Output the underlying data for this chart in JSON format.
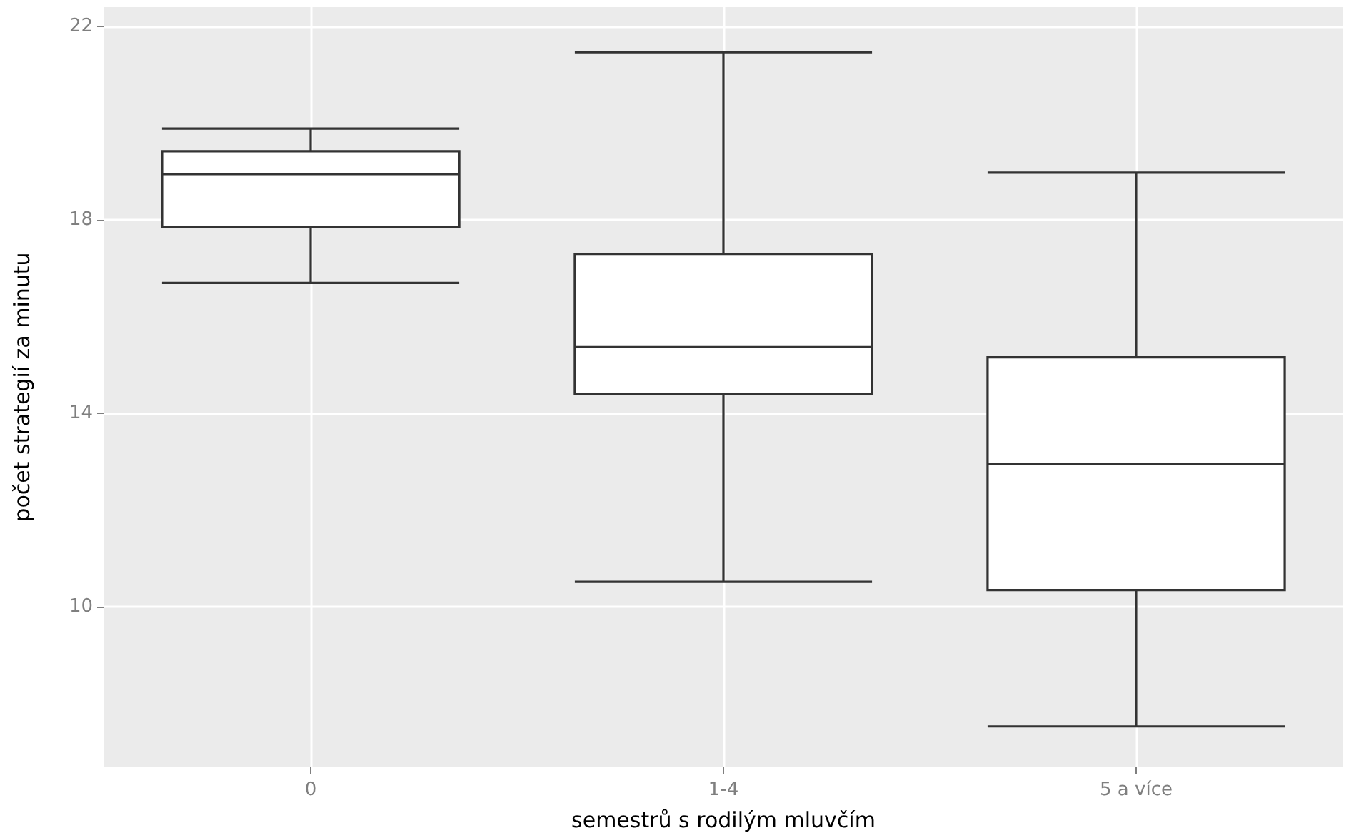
{
  "chart_data": {
    "type": "box",
    "xlabel": "semestrů s rodilým mluvčím",
    "ylabel": "počet strategií za minutu",
    "categories": [
      "0",
      "1-4",
      "5 a více"
    ],
    "boxes": [
      {
        "low": 16.7,
        "q1": 17.86,
        "median": 18.95,
        "q3": 19.42,
        "high": 19.89
      },
      {
        "low": 10.52,
        "q1": 14.4,
        "median": 15.37,
        "q3": 17.3,
        "high": 21.47
      },
      {
        "low": 7.53,
        "q1": 10.35,
        "median": 12.96,
        "q3": 15.16,
        "high": 18.98
      }
    ],
    "ylim": [
      6.7,
      22.4
    ],
    "yticks": [
      10,
      14,
      18,
      22
    ],
    "grid": true
  }
}
